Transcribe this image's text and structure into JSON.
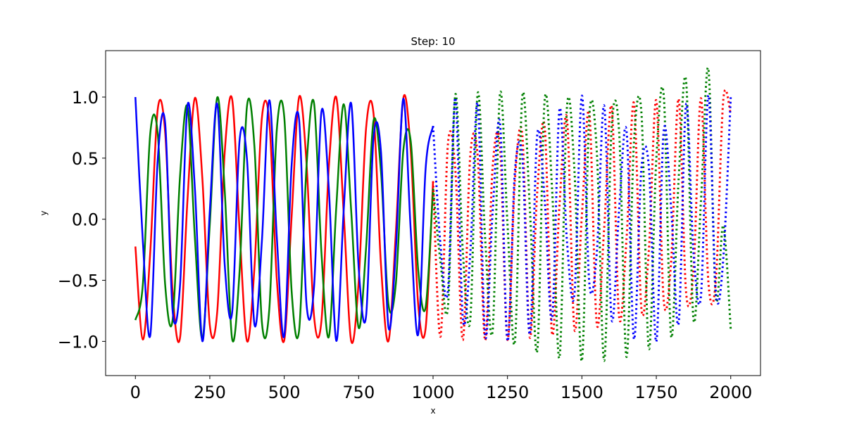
{
  "chart_data": {
    "type": "line",
    "title": "Step: 10",
    "xlabel": "x",
    "ylabel": "y",
    "xlim": [
      -100,
      2100
    ],
    "ylim": [
      -1.28,
      1.38
    ],
    "xticks": [
      0,
      250,
      500,
      750,
      1000,
      1250,
      1500,
      1750,
      2000
    ],
    "xtick_labels": [
      "0",
      "250",
      "500",
      "750",
      "1000",
      "1250",
      "1500",
      "1750",
      "2000"
    ],
    "yticks": [
      1.0,
      0.5,
      0.0,
      -0.5,
      -1.0
    ],
    "ytick_labels": [
      "1.0",
      "0.5",
      "0.0",
      "−0.5",
      "−1.0"
    ],
    "grid": false,
    "colors": {
      "red": "#ff0000",
      "green": "#008000",
      "blue": "#0000ff"
    },
    "series": [
      {
        "color": "#ff0000",
        "style": "solid",
        "x": [
          0,
          25,
          50,
          75,
          100,
          125,
          150,
          175,
          200,
          225,
          250,
          275,
          300,
          325,
          350,
          375,
          400,
          425,
          450,
          475,
          500,
          525,
          550,
          575,
          600,
          625,
          650,
          675,
          700,
          725,
          750,
          775,
          800,
          825,
          850,
          875,
          900,
          925,
          950,
          975,
          1000
        ],
        "y": [
          -0.2233,
          -0.985,
          -0.2667,
          0.8992,
          0.7108,
          -0.5954,
          -0.9706,
          0.1587,
          0.9931,
          0.3322,
          -0.8671,
          -0.7563,
          0.5434,
          0.9831,
          -0.0928,
          -0.9981,
          -0.3946,
          0.8309,
          0.797,
          -0.4887,
          -0.9916,
          0.0265,
          0.9996,
          0.4539,
          -0.7903,
          -0.8331,
          0.4316,
          0.9964,
          0.0399,
          -0.9972,
          -0.5101,
          0.746,
          0.8653,
          -0.3723,
          -0.9987,
          -0.1061,
          0.9901,
          0.5628,
          -0.6983,
          -0.8935,
          0.3112
        ]
      },
      {
        "color": "#008000",
        "style": "solid",
        "x": [
          0,
          25,
          50,
          75,
          100,
          125,
          150,
          175,
          200,
          225,
          250,
          275,
          300,
          325,
          350,
          375,
          400,
          425,
          450,
          475,
          500,
          525,
          550,
          575,
          600,
          625,
          650,
          675,
          700,
          725,
          750,
          775,
          800,
          825,
          850,
          875,
          900,
          925,
          950,
          975,
          1000
        ],
        "y": [
          -0.8256,
          -0.5357,
          0.7038,
          0.7025,
          -0.5369,
          -0.8249,
          0.3527,
          0.9206,
          -0.1581,
          -0.9767,
          -0.0415,
          0.9969,
          0.2381,
          -0.9805,
          -0.4249,
          0.9282,
          0.5921,
          -0.8437,
          -0.7316,
          0.7301,
          0.8393,
          -0.5933,
          -0.9114,
          0.4392,
          0.9528,
          -0.2743,
          -0.9628,
          0.1042,
          0.9413,
          0.0669,
          -0.8886,
          -0.234,
          0.8051,
          0.39,
          -0.6952,
          -0.528,
          0.5617,
          0.6394,
          -0.4114,
          -0.7218,
          0.2492
        ]
      },
      {
        "color": "#0000ff",
        "style": "solid",
        "x": [
          0,
          25,
          50,
          75,
          100,
          125,
          150,
          175,
          200,
          225,
          250,
          275,
          300,
          325,
          350,
          375,
          400,
          425,
          450,
          475,
          500,
          525,
          550,
          575,
          600,
          625,
          650,
          675,
          700,
          725,
          750,
          775,
          800,
          825,
          850,
          875,
          900,
          925,
          950,
          975,
          1000
        ],
        "y": [
          1.0,
          -0.18,
          -0.951,
          0.4878,
          0.7879,
          -0.7488,
          -0.5417,
          0.9326,
          0.2445,
          -0.9986,
          0.0685,
          0.9431,
          -0.3703,
          -0.7647,
          0.6456,
          0.4887,
          -0.8628,
          -0.1778,
          0.9738,
          -0.1435,
          -0.9563,
          0.4474,
          0.8156,
          -0.6976,
          -0.5601,
          0.8809,
          0.2441,
          -0.9956,
          0.0807,
          0.9474,
          -0.3969,
          -0.7924,
          0.6633,
          0.5542,
          -0.8807,
          -0.2504,
          0.9862,
          -0.0892,
          -0.9434,
          0.4139,
          0.7637
        ]
      },
      {
        "color": "#ff0000",
        "style": "dotted",
        "x": [
          1000,
          1025,
          1050,
          1075,
          1100,
          1125,
          1150,
          1175,
          1200,
          1225,
          1250,
          1275,
          1300,
          1325,
          1350,
          1375,
          1400,
          1425,
          1450,
          1475,
          1500,
          1525,
          1550,
          1575,
          1600,
          1625,
          1650,
          1675,
          1700,
          1725,
          1750,
          1775,
          1800,
          1825,
          1850,
          1875,
          1900,
          1925,
          1950,
          1975,
          2000
        ],
        "y": [
          0.3112,
          -0.9605,
          0.6171,
          0.3962,
          -0.9891,
          0.5203,
          0.5099,
          -0.9922,
          0.4213,
          0.5974,
          -0.9867,
          0.3218,
          0.6819,
          -0.9671,
          0.2245,
          0.7542,
          -0.9406,
          0.1255,
          0.8207,
          -0.9,
          0.0331,
          0.8702,
          -0.8577,
          -0.0682,
          0.9194,
          -0.7993,
          -0.1593,
          0.9494,
          -0.7361,
          -0.2515,
          0.9718,
          -0.6675,
          -0.3373,
          0.9842,
          -0.5977,
          -0.4187,
          0.9898,
          -0.5166,
          -0.5022,
          0.9777,
          0.8612
        ]
      },
      {
        "color": "#008000",
        "style": "dotted",
        "x": [
          1000,
          1025,
          1050,
          1075,
          1100,
          1125,
          1150,
          1175,
          1200,
          1225,
          1250,
          1275,
          1300,
          1325,
          1350,
          1375,
          1400,
          1425,
          1450,
          1475,
          1500,
          1525,
          1550,
          1575,
          1600,
          1625,
          1650,
          1675,
          1700,
          1725,
          1750,
          1775,
          1800,
          1825,
          1850,
          1875,
          1900,
          1925,
          1950,
          1975,
          2000
        ],
        "y": [
          0.2492,
          -0.3478,
          -0.7181,
          1.0212,
          -0.2617,
          -0.8193,
          1.0302,
          -0.1588,
          -0.9142,
          1.028,
          -0.0378,
          -1.0028,
          1.0116,
          0.0958,
          -1.0762,
          0.9777,
          0.2416,
          -1.1299,
          0.9243,
          0.3972,
          -1.1587,
          0.8497,
          0.5581,
          -1.1586,
          0.753,
          0.7181,
          -1.1272,
          0.6339,
          0.8713,
          -1.062,
          0.4929,
          1.0115,
          -0.961,
          0.331,
          1.1321,
          -0.8227,
          0.1484,
          1.2271,
          -0.6443,
          -0.0514,
          -0.9
        ]
      },
      {
        "color": "#0000ff",
        "style": "dotted",
        "x": [
          1000,
          1025,
          1050,
          1075,
          1100,
          1125,
          1150,
          1175,
          1200,
          1225,
          1250,
          1275,
          1300,
          1325,
          1350,
          1375,
          1400,
          1425,
          1450,
          1475,
          1500,
          1525,
          1550,
          1575,
          1600,
          1625,
          1650,
          1675,
          1700,
          1725,
          1750,
          1775,
          1800,
          1825,
          1850,
          1875,
          1900,
          1925,
          1950,
          1975,
          2000
        ],
        "y": [
          0.7637,
          -0.2137,
          -0.5849,
          0.9933,
          -0.8141,
          -0.2823,
          0.9473,
          -0.9566,
          0.0561,
          0.7855,
          -0.9952,
          0.3915,
          0.5038,
          -0.9433,
          0.6917,
          0.1597,
          -0.8112,
          0.9028,
          -0.187,
          -0.6122,
          1.0108,
          -0.5252,
          -0.2766,
          0.9267,
          -0.8194,
          0.0766,
          0.7208,
          -0.9816,
          0.4158,
          0.4276,
          -1.0016,
          0.7278,
          0.0856,
          -0.8493,
          0.941,
          -0.2743,
          -0.6264,
          1.0145,
          -0.6015,
          -0.3232,
          1.0
        ]
      }
    ]
  }
}
